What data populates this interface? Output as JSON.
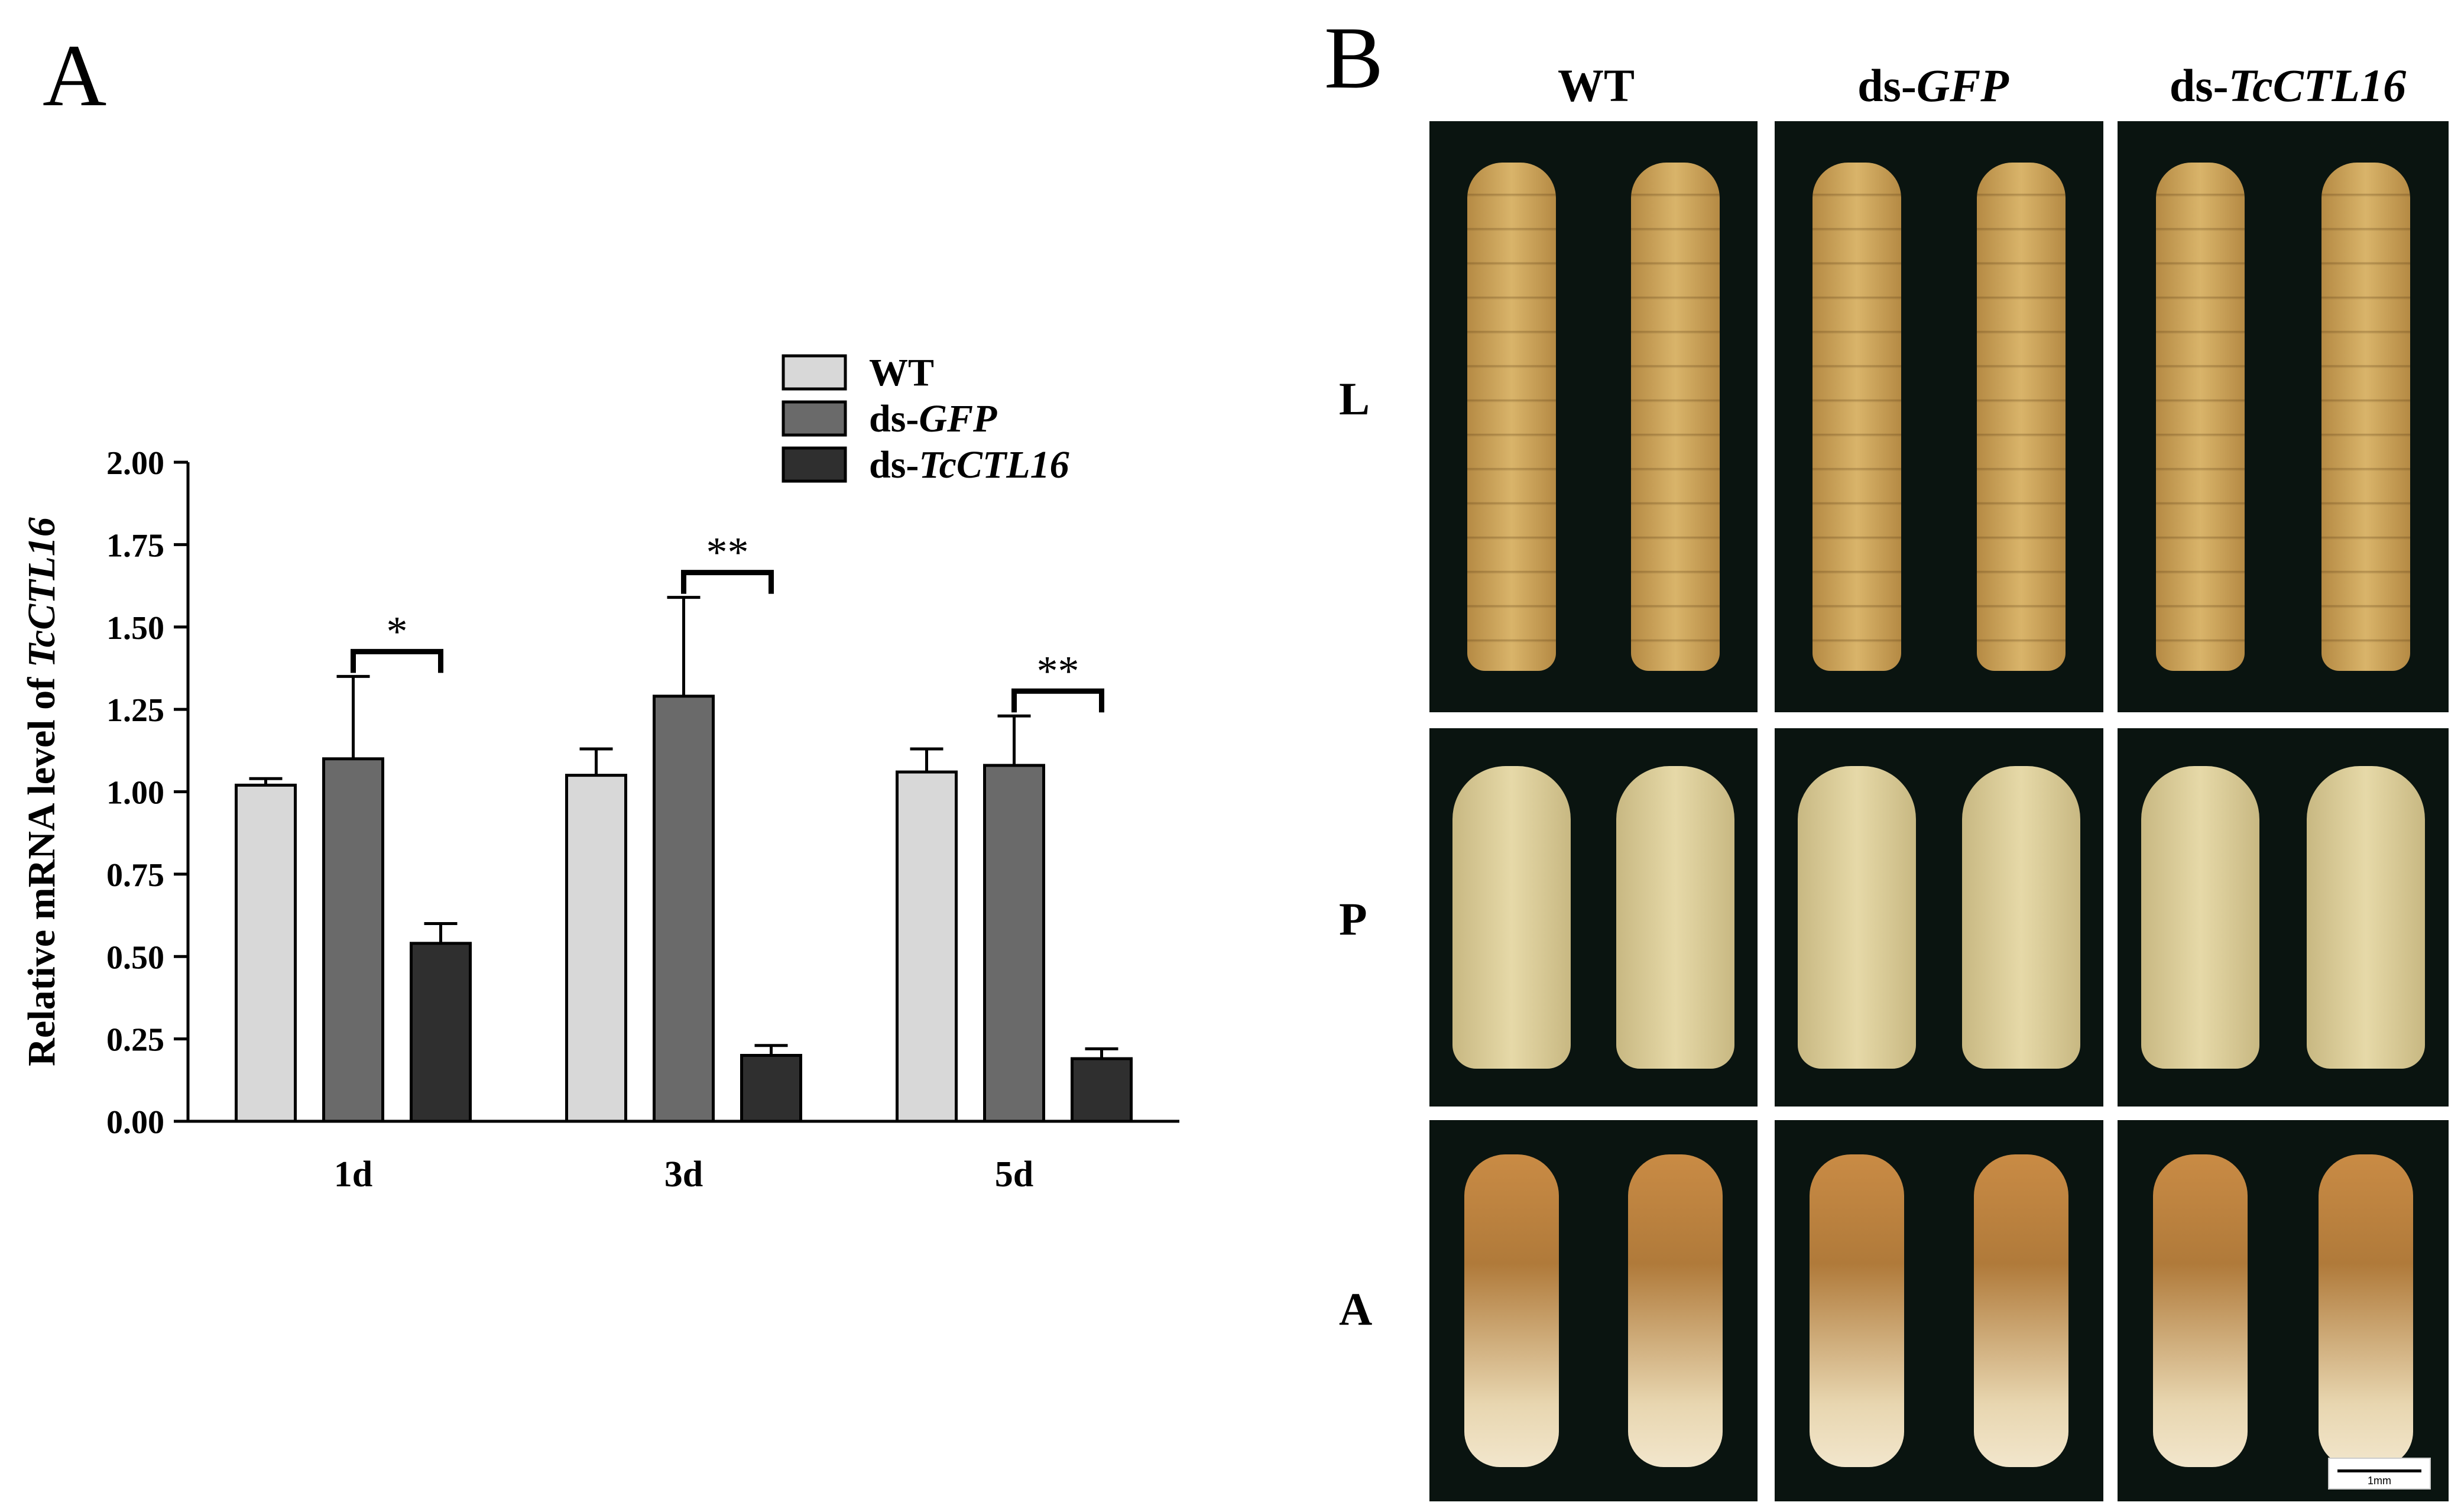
{
  "panels": {
    "a_label": "A",
    "b_label": "B"
  },
  "chart_data": {
    "type": "bar",
    "title": "",
    "ylabel_prefix": "Relative mRNA level of ",
    "ylabel_gene": "TcCTL16",
    "xlabel": "",
    "ylim": [
      0,
      2.0
    ],
    "yticks": [
      "0.00",
      "0.25",
      "0.50",
      "0.75",
      "1.00",
      "1.25",
      "1.50",
      "1.75",
      "2.00"
    ],
    "categories": [
      "1d",
      "3d",
      "5d"
    ],
    "series": [
      {
        "name_prefix": "",
        "name_italic": "WT",
        "name": "WT",
        "color": "#d8d8d8",
        "values": [
          1.02,
          1.05,
          1.06
        ],
        "errors": [
          0.02,
          0.08,
          0.07
        ]
      },
      {
        "name_prefix": "ds-",
        "name_italic": "GFP",
        "name": "ds-GFP",
        "color": "#6a6a6a",
        "values": [
          1.1,
          1.29,
          1.08
        ],
        "errors": [
          0.25,
          0.3,
          0.15
        ]
      },
      {
        "name_prefix": "ds-",
        "name_italic": "TcCTL16",
        "name": "ds-TcCTL16",
        "color": "#2f2f2f",
        "values": [
          0.54,
          0.2,
          0.19
        ],
        "errors": [
          0.06,
          0.03,
          0.03
        ]
      }
    ],
    "significance": [
      {
        "category": "1d",
        "from_series": 1,
        "to_series": 2,
        "label": "*"
      },
      {
        "category": "3d",
        "from_series": 1,
        "to_series": 2,
        "label": "**"
      },
      {
        "category": "5d",
        "from_series": 1,
        "to_series": 2,
        "label": "**"
      }
    ],
    "legend_position": "top-right",
    "grid": false
  },
  "panel_b": {
    "columns": [
      {
        "prefix": "",
        "italic": "",
        "plain": "WT"
      },
      {
        "prefix": "ds-",
        "italic": "GFP",
        "plain": ""
      },
      {
        "prefix": "ds-",
        "italic": "TcCTL16",
        "plain": ""
      }
    ],
    "rows": [
      "L",
      "P",
      "A"
    ],
    "scale_bar_label": "1mm",
    "colors": {
      "background": "#0a1410",
      "larva": "#d9b46a",
      "pupa": "#e6d9a8",
      "adult": "#b07a3a"
    }
  }
}
